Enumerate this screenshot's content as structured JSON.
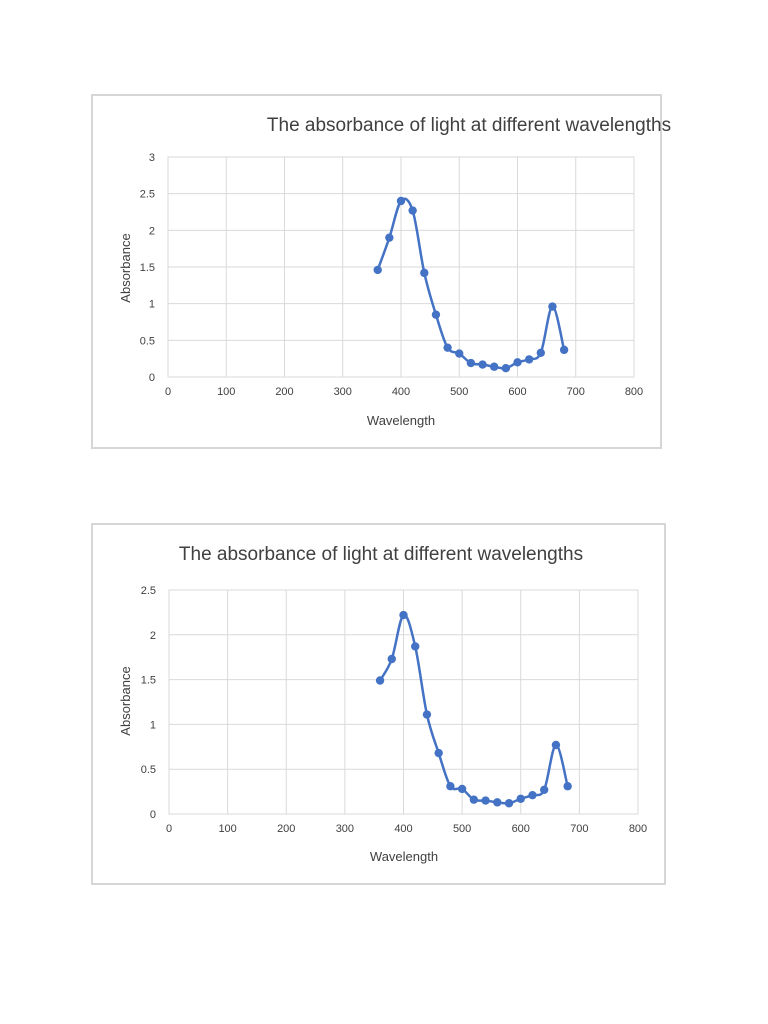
{
  "chart_data": [
    {
      "type": "scatter",
      "title": "The absorbance of light at different wavelengths",
      "xlabel": "Wavelength",
      "ylabel": "Absorbance",
      "xlim": [
        0,
        800
      ],
      "ylim": [
        0,
        3
      ],
      "xticks": [
        "0",
        "100",
        "200",
        "300",
        "400",
        "500",
        "600",
        "700",
        "800"
      ],
      "yticks": [
        "0",
        "0.5",
        "1",
        "1.5",
        "2",
        "2.5",
        "3"
      ],
      "grid": true,
      "color": "#4472c4",
      "series": [
        {
          "x": [
            360,
            380,
            400,
            420,
            440,
            460,
            480,
            500,
            520,
            540,
            560,
            580,
            600,
            620,
            640,
            660,
            680
          ],
          "y": [
            1.46,
            1.9,
            2.4,
            2.27,
            1.42,
            0.85,
            0.4,
            0.32,
            0.19,
            0.17,
            0.14,
            0.12,
            0.2,
            0.24,
            0.33,
            0.96,
            0.37
          ]
        }
      ]
    },
    {
      "type": "scatter",
      "title": "The absorbance of light at different wavelengths",
      "xlabel": "Wavelength",
      "ylabel": "Absorbance",
      "xlim": [
        0,
        800
      ],
      "ylim": [
        0,
        2.5
      ],
      "xticks": [
        "0",
        "100",
        "200",
        "300",
        "400",
        "500",
        "600",
        "700",
        "800"
      ],
      "yticks": [
        "0",
        "0.5",
        "1",
        "1.5",
        "2",
        "2.5"
      ],
      "grid": true,
      "color": "#4472c4",
      "series": [
        {
          "x": [
            360,
            380,
            400,
            420,
            440,
            460,
            480,
            500,
            520,
            540,
            560,
            580,
            600,
            620,
            640,
            660,
            680
          ],
          "y": [
            1.49,
            1.73,
            2.22,
            1.87,
            1.11,
            0.68,
            0.31,
            0.28,
            0.16,
            0.15,
            0.13,
            0.12,
            0.17,
            0.21,
            0.27,
            0.77,
            0.31
          ]
        }
      ]
    }
  ]
}
